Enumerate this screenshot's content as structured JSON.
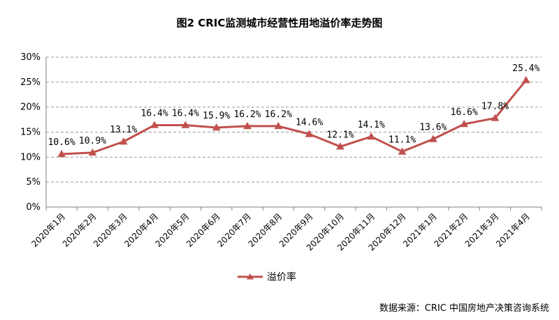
{
  "chart_data": {
    "type": "line",
    "title": "图2   CRIC监测城市经营性用地溢价率走势图",
    "source_note": "数据来源：CRIC 中国房地产决策咨询系统",
    "categories": [
      "2020年1月",
      "2020年2月",
      "2020年3月",
      "2020年4月",
      "2020年5月",
      "2020年6月",
      "2020年7月",
      "2020年8月",
      "2020年9月",
      "2020年10月",
      "2020年11月",
      "2020年12月",
      "2021年1月",
      "2021年2月",
      "2021年3月",
      "2021年4月"
    ],
    "series": [
      {
        "name": "溢价率",
        "values": [
          10.6,
          10.9,
          13.1,
          16.4,
          16.4,
          15.9,
          16.2,
          16.2,
          14.6,
          12.1,
          14.1,
          11.1,
          13.6,
          16.6,
          17.8,
          25.4
        ],
        "labels": [
          "10.6%",
          "10.9%",
          "13.1%",
          "16.4%",
          "16.4%",
          "15.9%",
          "16.2%",
          "16.2%",
          "14.6%",
          "12.1%",
          "14.1%",
          "11.1%",
          "13.6%",
          "16.6%",
          "17.8%",
          "25.4%"
        ],
        "color": "#c0504d",
        "marker": "triangle"
      }
    ],
    "ylim": [
      0,
      30
    ],
    "yticks": [
      0,
      5,
      10,
      15,
      20,
      25,
      30
    ],
    "ytick_labels": [
      "0%",
      "5%",
      "10%",
      "15%",
      "20%",
      "25%",
      "30%"
    ],
    "grid": "horizontal-dashed",
    "legend_position": "bottom-center"
  }
}
